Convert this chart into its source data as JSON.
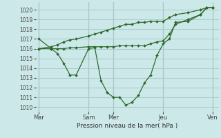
{
  "title": "Pression niveau de la mer( hPa )",
  "background_color": "#cce8e8",
  "grid_color": "#aacccc",
  "line_color": "#2d6a2d",
  "ylim": [
    1009.5,
    1020.8
  ],
  "yticks": [
    1010,
    1011,
    1012,
    1013,
    1014,
    1015,
    1016,
    1017,
    1018,
    1019,
    1020
  ],
  "xtick_labels": [
    "Mar",
    "Sam",
    "Mer",
    "Jeu",
    "Ven"
  ],
  "xtick_positions": [
    0,
    8,
    12,
    20,
    28
  ],
  "vline_positions": [
    0,
    8,
    12,
    20,
    28
  ],
  "line_low_x": [
    0,
    2,
    3,
    4,
    5,
    6,
    8,
    9,
    10,
    11,
    12,
    13,
    14,
    15,
    16,
    17,
    18,
    19,
    20,
    21,
    22,
    24,
    26,
    27,
    28
  ],
  "line_low_y": [
    1017.0,
    1016.0,
    1015.5,
    1014.5,
    1013.3,
    1013.3,
    1016.0,
    1016.1,
    1012.7,
    1011.5,
    1011.0,
    1011.0,
    1010.2,
    1010.5,
    1011.2,
    1012.5,
    1013.3,
    1015.3,
    1016.5,
    1017.0,
    1018.7,
    1018.8,
    1019.5,
    1020.2,
    1020.2
  ],
  "line_mid_x": [
    0,
    2,
    3,
    4,
    5,
    6,
    8,
    9,
    10,
    11,
    12,
    13,
    14,
    15,
    16,
    17,
    18,
    19,
    20,
    21,
    22,
    24,
    26,
    27,
    28
  ],
  "line_mid_y": [
    1016.0,
    1016.0,
    1016.0,
    1016.0,
    1016.1,
    1016.1,
    1016.2,
    1016.2,
    1016.2,
    1016.2,
    1016.2,
    1016.3,
    1016.3,
    1016.3,
    1016.3,
    1016.3,
    1016.5,
    1016.7,
    1016.8,
    1017.5,
    1018.5,
    1019.0,
    1019.5,
    1020.2,
    1020.2
  ],
  "line_top_x": [
    0,
    2,
    3,
    4,
    5,
    6,
    8,
    9,
    10,
    11,
    12,
    13,
    14,
    15,
    16,
    17,
    18,
    19,
    20,
    21,
    22,
    24,
    26,
    27,
    28
  ],
  "line_top_y": [
    1016.0,
    1016.2,
    1016.4,
    1016.7,
    1016.9,
    1017.0,
    1017.3,
    1017.5,
    1017.7,
    1017.9,
    1018.1,
    1018.3,
    1018.5,
    1018.5,
    1018.7,
    1018.7,
    1018.8,
    1018.8,
    1018.8,
    1019.2,
    1019.5,
    1019.7,
    1020.0,
    1020.2,
    1020.2
  ]
}
